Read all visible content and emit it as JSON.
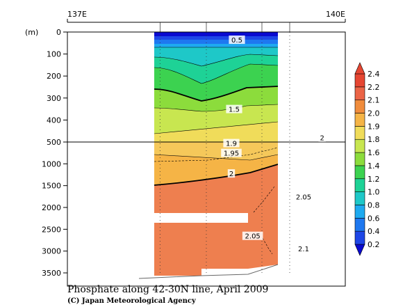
{
  "chart_data": {
    "type": "heatmap",
    "title": "Phosphate along 42-30N line, April 2009",
    "credit": "(C) Japan Meteorological Agency",
    "y_unit": "(m)",
    "x_ticks": [
      {
        "value": 137,
        "label": "137E"
      },
      {
        "value": 140,
        "label": "140E"
      }
    ],
    "x_range": [
      137,
      140
    ],
    "station_x": [
      138.0,
      138.5,
      139.1,
      139.4
    ],
    "upper_depths": [
      0,
      100,
      200,
      300,
      400,
      500
    ],
    "lower_depths": [
      500,
      1000,
      1500,
      2000,
      2500,
      3000,
      3500
    ],
    "y_labels": [
      "0",
      "100",
      "200",
      "300",
      "400",
      "500",
      "1000",
      "1500",
      "2000",
      "2500",
      "3000",
      "3500"
    ],
    "colorbar": {
      "levels": [
        0.2,
        0.4,
        0.6,
        0.8,
        1.0,
        1.2,
        1.4,
        1.6,
        1.8,
        1.9,
        2.0,
        2.1,
        2.2,
        2.4
      ],
      "labels": [
        "0.2",
        "0.4",
        "0.6",
        "0.8",
        "1.0",
        "1.2",
        "1.4",
        "1.6",
        "1.8",
        "1.9",
        "2.0",
        "2.1",
        "2.2",
        "2.4"
      ],
      "colors": [
        "#0a0ad0",
        "#1e46e6",
        "#1e78f0",
        "#1eaaf0",
        "#1ec8c8",
        "#1ed296",
        "#3cd250",
        "#8cdc3c",
        "#c8e650",
        "#f0dc5a",
        "#f5b446",
        "#f08c3c",
        "#eb6446",
        "#e64632"
      ]
    },
    "contour_labels": [
      {
        "text": "0.5",
        "x": 138.83,
        "depth": 35
      },
      {
        "text": "1.5",
        "x": 138.8,
        "depth": 350
      },
      {
        "text": "1.9",
        "x": 138.77,
        "depth": 525
      },
      {
        "text": "1.95",
        "x": 138.77,
        "depth": 750
      },
      {
        "text": "2",
        "x": 138.77,
        "depth": 1220
      },
      {
        "text": "2.05",
        "x": 139.55,
        "depth": 1750
      },
      {
        "text": "2.05",
        "x": 139.0,
        "depth": 2650
      },
      {
        "text": "2.1",
        "x": 139.55,
        "depth": 2940
      },
      {
        "text": "2",
        "x": 139.75,
        "depth": 480
      }
    ]
  }
}
